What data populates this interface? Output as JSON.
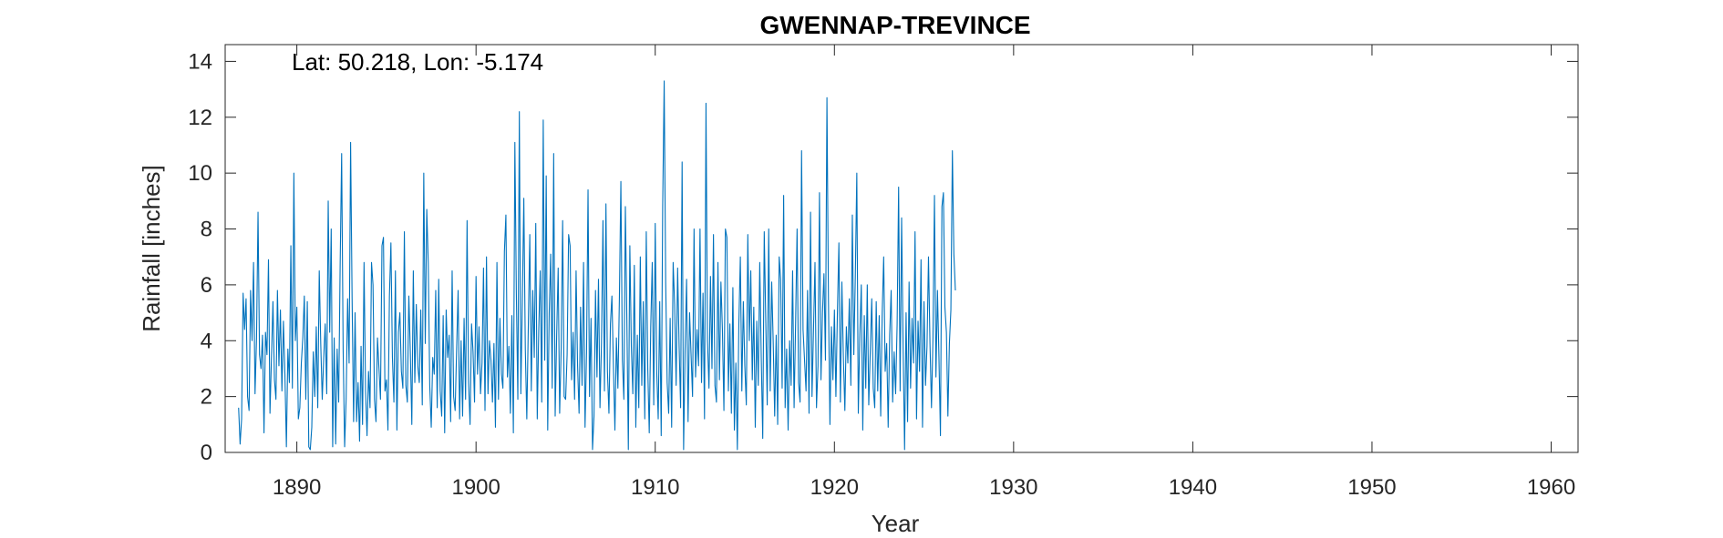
{
  "chart_data": {
    "type": "line",
    "title": "GWENNAP-TREVINCE",
    "xlabel": "Year",
    "ylabel": "Rainfall [inches]",
    "annotation": "Lat: 50.218, Lon: -5.174",
    "xlim": [
      1886,
      1961.5
    ],
    "ylim": [
      0,
      14.6
    ],
    "xticks": [
      1890,
      1900,
      1910,
      1920,
      1930,
      1940,
      1950,
      1960
    ],
    "yticks": [
      0,
      2,
      4,
      6,
      8,
      10,
      12,
      14
    ],
    "grid": false,
    "line_color": "#0072BD",
    "start_year": 1886.75,
    "step": 0.0833333,
    "series": [
      {
        "values": [
          1.6,
          0.3,
          1.2,
          5.7,
          4.4,
          5.5,
          2.0,
          1.5,
          5.8,
          4.0,
          6.8,
          2.1,
          4.1,
          8.6,
          3.5,
          3.0,
          4.2,
          0.7,
          4.3,
          3.5,
          6.9,
          1.4,
          3.4,
          5.4,
          2.6,
          1.9,
          5.8,
          3.1,
          5.1,
          2.2,
          4.7,
          2.8,
          0.2,
          3.7,
          2.5,
          7.4,
          2.3,
          10.0,
          4.0,
          5.2,
          1.2,
          1.6,
          3.2,
          4.1,
          5.6,
          1.9,
          5.4,
          0.2,
          0.1,
          0.9,
          3.6,
          2.0,
          4.5,
          1.6,
          6.5,
          3.9,
          1.9,
          3.4,
          4.6,
          2.1,
          9.0,
          4.3,
          8.0,
          0.2,
          4.1,
          0.3,
          3.7,
          1.8,
          6.7,
          10.7,
          3.7,
          0.2,
          1.9,
          5.5,
          3.2,
          11.1,
          5.5,
          1.1,
          5.0,
          1.1,
          2.5,
          0.4,
          3.8,
          1.0,
          6.8,
          2.2,
          0.6,
          2.9,
          1.6,
          6.8,
          6.0,
          1.9,
          1.1,
          4.1,
          3.0,
          1.9,
          7.4,
          7.7,
          2.2,
          2.6,
          0.8,
          5.6,
          7.5,
          3.4,
          1.8,
          6.5,
          0.8,
          4.3,
          5.0,
          2.9,
          2.3,
          7.9,
          2.4,
          1.8,
          5.6,
          3.6,
          1.0,
          6.5,
          2.5,
          5.3,
          3.1,
          2.5,
          5.1,
          1.7,
          10.0,
          3.9,
          8.7,
          6.8,
          2.4,
          0.9,
          3.4,
          2.8,
          5.8,
          1.6,
          6.2,
          2.2,
          1.3,
          4.9,
          0.7,
          5.1,
          3.4,
          4.2,
          1.1,
          6.5,
          2.0,
          1.5,
          3.7,
          5.8,
          1.2,
          4.0,
          1.3,
          4.8,
          1.9,
          8.3,
          2.5,
          1.0,
          4.6,
          3.6,
          1.8,
          6.3,
          2.8,
          4.5,
          2.1,
          3.2,
          6.6,
          1.5,
          7.0,
          2.1,
          4.0,
          3.3,
          1.8,
          3.9,
          0.9,
          6.8,
          1.9,
          4.8,
          2.8,
          2.3,
          7.2,
          8.5,
          2.7,
          3.8,
          1.4,
          4.9,
          0.7,
          11.1,
          5.7,
          1.9,
          12.2,
          2.1,
          5.4,
          9.1,
          3.7,
          1.2,
          4.5,
          7.8,
          2.2,
          5.8,
          3.4,
          8.2,
          1.2,
          4.4,
          6.5,
          1.8,
          11.9,
          3.3,
          9.9,
          0.8,
          5.0,
          7.1,
          2.3,
          10.7,
          1.3,
          4.2,
          6.6,
          1.4,
          3.7,
          8.3,
          2.0,
          1.9,
          3.5,
          7.8,
          7.4,
          2.6,
          4.3,
          1.9,
          6.5,
          3.1,
          1.4,
          5.2,
          2.4,
          6.8,
          0.9,
          3.6,
          9.4,
          2.0,
          4.8,
          0.1,
          1.3,
          5.8,
          2.7,
          6.2,
          1.6,
          3.9,
          8.3,
          2.2,
          8.9,
          2.9,
          1.4,
          4.6,
          5.6,
          3.1,
          0.8,
          4.1,
          2.3,
          5.5,
          9.7,
          3.3,
          1.9,
          8.8,
          4.8,
          0.1,
          7.4,
          3.8,
          2.1,
          6.7,
          0.9,
          4.2,
          1.6,
          7.0,
          2.4,
          5.4,
          1.2,
          7.9,
          3.0,
          0.7,
          4.5,
          6.8,
          1.7,
          8.2,
          2.9,
          1.2,
          5.4,
          0.6,
          8.8,
          13.3,
          6.1,
          2.5,
          1.4,
          4.8,
          0.9,
          6.8,
          5.3,
          2.4,
          6.6,
          3.8,
          1.6,
          10.4,
          0.1,
          3.7,
          6.2,
          1.1,
          5.0,
          3.5,
          2.0,
          8.0,
          2.7,
          4.4,
          3.1,
          8.0,
          2.5,
          5.7,
          1.2,
          12.5,
          4.0,
          2.3,
          6.3,
          3.0,
          7.8,
          2.4,
          1.8,
          6.8,
          2.6,
          6.1,
          4.4,
          1.5,
          8.0,
          7.7,
          2.2,
          4.6,
          1.4,
          5.9,
          0.8,
          3.2,
          0.1,
          4.6,
          7.0,
          2.2,
          5.4,
          3.1,
          1.7,
          7.8,
          4.0,
          6.5,
          2.6,
          5.2,
          0.9,
          4.7,
          2.4,
          6.8,
          3.4,
          0.5,
          7.9,
          4.8,
          1.7,
          8.0,
          2.2,
          6.1,
          4.0,
          1.3,
          4.2,
          1.0,
          7.0,
          6.2,
          2.3,
          9.2,
          1.6,
          3.7,
          0.8,
          4.0,
          2.4,
          6.5,
          1.6,
          4.6,
          8.0,
          2.5,
          1.8,
          10.8,
          4.4,
          3.3,
          2.2,
          5.8,
          1.4,
          8.6,
          2.0,
          4.4,
          6.8,
          1.6,
          3.1,
          9.3,
          2.6,
          5.0,
          6.4,
          3.3,
          12.7,
          5.5,
          1.0,
          4.5,
          2.6,
          5.1,
          2.0,
          5.0,
          7.5,
          1.8,
          6.1,
          3.4,
          1.5,
          4.5,
          3.2,
          5.5,
          2.4,
          8.5,
          3.5,
          6.3,
          10.0,
          1.4,
          4.2,
          6.0,
          0.8,
          4.9,
          2.3,
          6.0,
          1.7,
          3.6,
          5.5,
          2.3,
          1.6,
          5.4,
          2.2,
          4.9,
          1.3,
          5.0,
          7.0,
          2.9,
          3.9,
          0.9,
          4.2,
          5.8,
          1.8,
          3.6,
          2.1,
          4.6,
          9.5,
          2.2,
          8.4,
          3.8,
          0.1,
          5.0,
          1.1,
          6.1,
          2.3,
          4.8,
          3.2,
          7.9,
          1.2,
          4.7,
          2.9,
          6.9,
          0.9,
          5.4,
          2.4,
          3.8,
          7.0,
          3.9,
          1.6,
          4.1,
          9.2,
          2.7,
          5.8,
          3.4,
          0.6,
          8.8,
          9.3,
          5.2,
          4.3,
          1.3,
          3.9,
          5.1,
          10.8,
          7.1,
          5.8
        ]
      }
    ]
  }
}
